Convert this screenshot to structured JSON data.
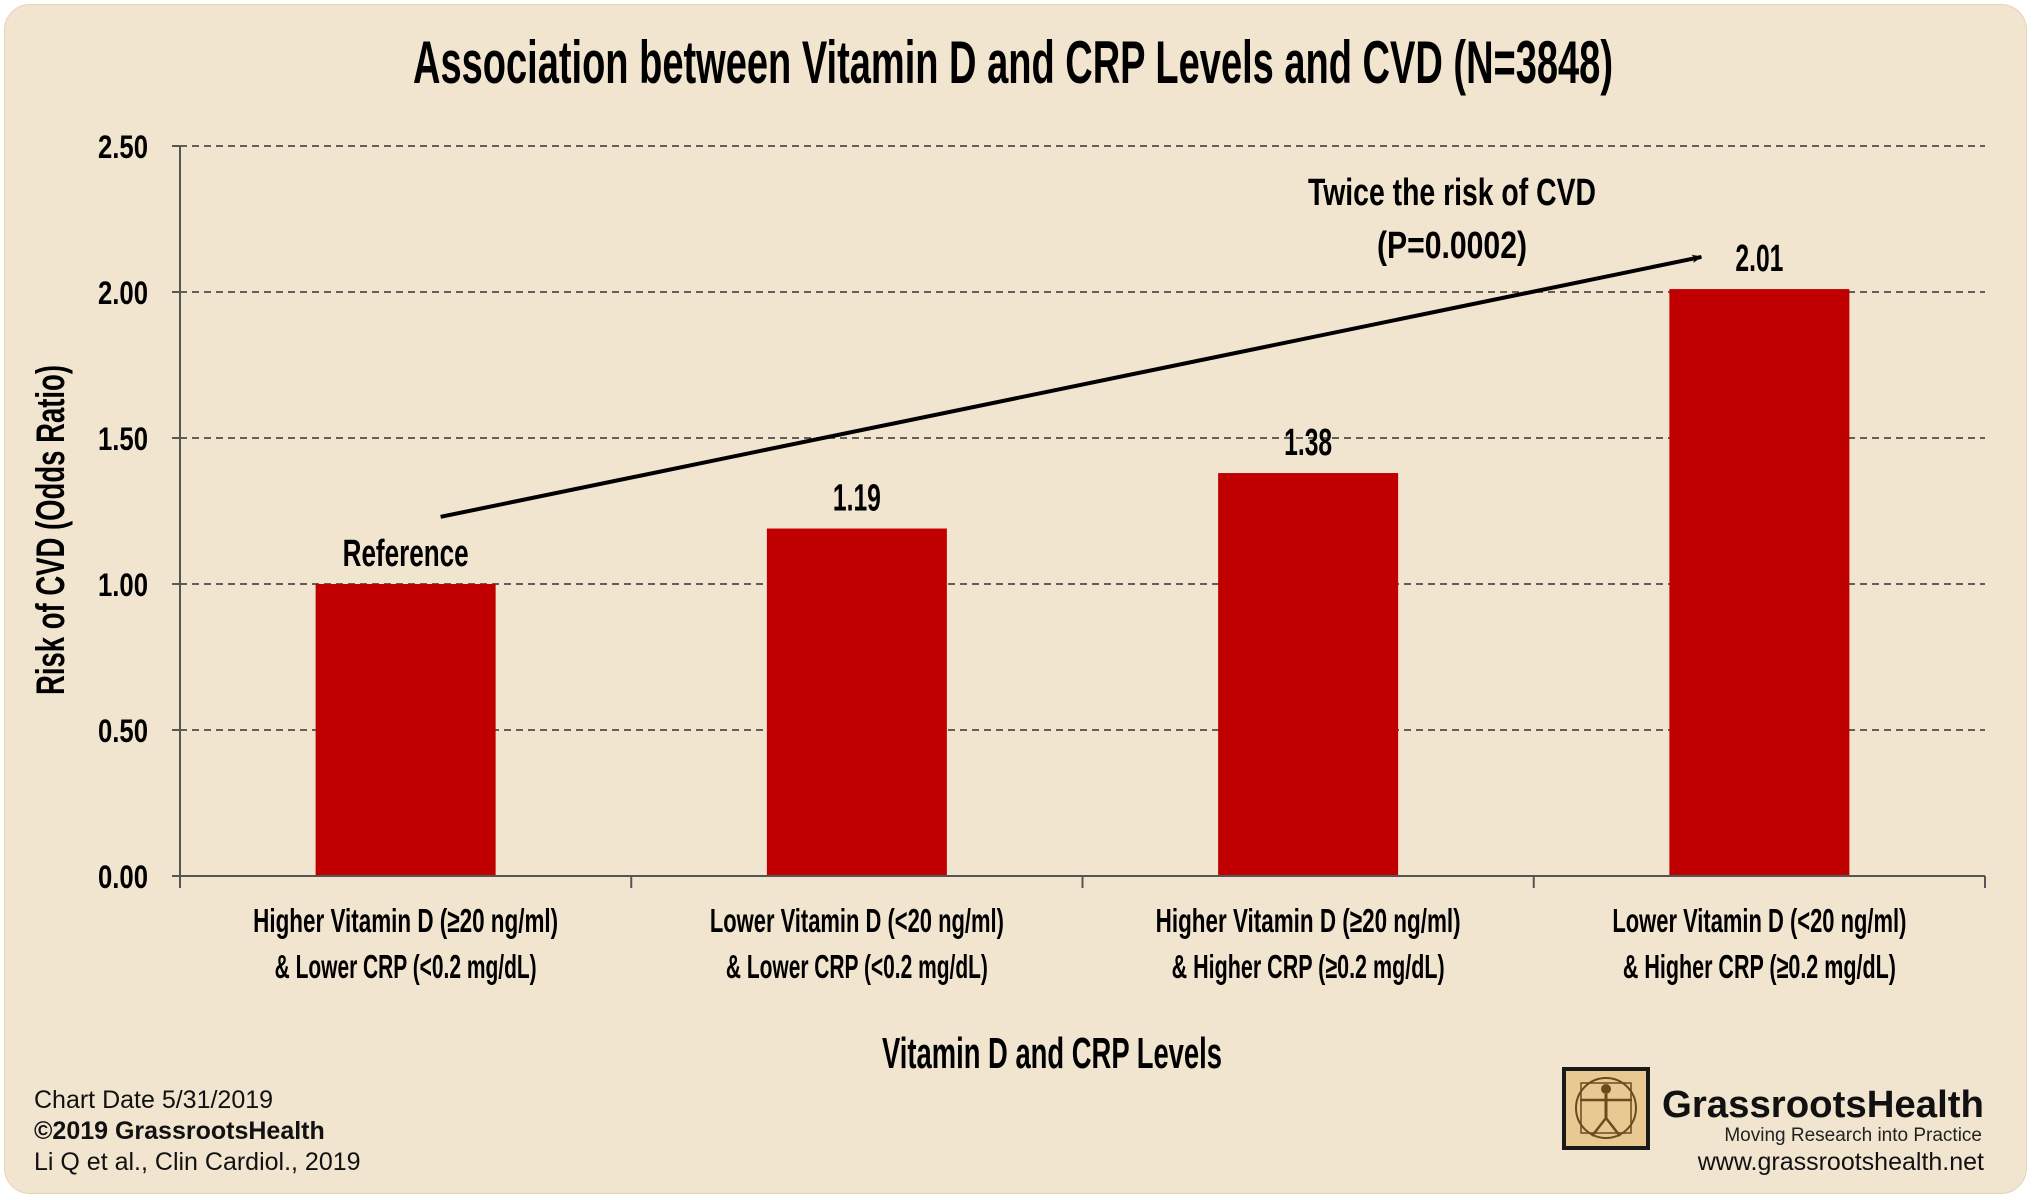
{
  "chart_data": {
    "type": "bar",
    "title": "Association between Vitamin D and CRP Levels and CVD (N=3848)",
    "xlabel": "Vitamin D and CRP Levels",
    "ylabel": "Risk of CVD (Odds Ratio)",
    "ylim": [
      0,
      2.5
    ],
    "yticks": [
      0,
      0.5,
      1.0,
      1.5,
      2.0,
      2.5
    ],
    "ytick_labels": [
      "0.00",
      "0.50",
      "1.00",
      "1.50",
      "2.00",
      "2.50"
    ],
    "grid": true,
    "categories": [
      [
        "Higher Vitamin D (≥20 ng/ml)",
        "& Lower CRP (<0.2 mg/dL)"
      ],
      [
        "Lower Vitamin D (<20 ng/ml)",
        "& Lower CRP (<0.2 mg/dL)"
      ],
      [
        "Higher Vitamin D (≥20 ng/ml)",
        "& Higher CRP (≥0.2 mg/dL)"
      ],
      [
        "Lower Vitamin D (<20 ng/ml)",
        "& Higher CRP (≥0.2 mg/dL)"
      ]
    ],
    "values": [
      1.0,
      1.19,
      1.38,
      2.01
    ],
    "data_labels": [
      "Reference",
      "1.19",
      "1.38",
      "2.01"
    ],
    "bar_color": "#c00000",
    "annotation": {
      "lines": [
        "Twice the risk of CVD",
        "(P=0.0002)"
      ],
      "arrow": {
        "from": {
          "category": 0,
          "y": 1.23
        },
        "to": {
          "category": 3,
          "y": 2.12
        }
      }
    }
  },
  "footer": {
    "chart_date": "Chart Date 5/31/2019",
    "copyright": "©2019 GrassrootsHealth",
    "citation": "Li Q et al., Clin Cardiol., 2019"
  },
  "brand": {
    "name": "GrassrootsHealth",
    "tagline": "Moving Research into Practice",
    "url": "www.grassrootshealth.net",
    "logo_icon": "vitruvian-man-icon"
  },
  "colors": {
    "background": "#f1e5d0",
    "bar": "#c00000",
    "grid": "#333333"
  }
}
